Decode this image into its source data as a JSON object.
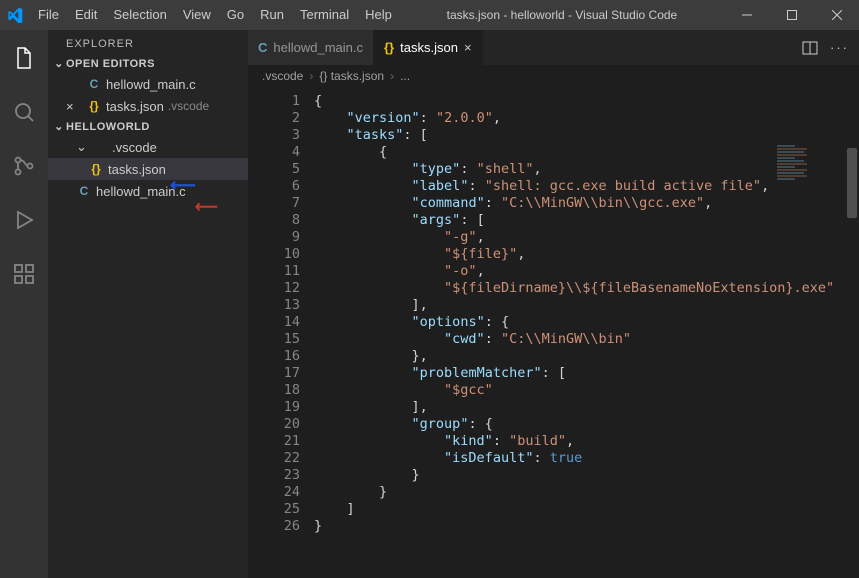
{
  "titlebar": {
    "title": "tasks.json - helloworld - Visual Studio Code",
    "menu": [
      "File",
      "Edit",
      "Selection",
      "View",
      "Go",
      "Run",
      "Terminal",
      "Help"
    ]
  },
  "sidebar": {
    "title": "EXPLORER",
    "open_editors_label": "OPEN EDITORS",
    "open_editors": [
      {
        "icon": "C",
        "iconClass": "icon-c",
        "name": "hellowd_main.c",
        "suffix": ""
      },
      {
        "icon": "{}",
        "iconClass": "icon-json",
        "name": "tasks.json",
        "suffix": ".vscode",
        "closeable": true
      }
    ],
    "project_label": "HELLOWORLD",
    "tree": [
      {
        "indent": 1,
        "chevron": true,
        "icon": "",
        "name": ".vscode"
      },
      {
        "indent": 2,
        "icon": "{}",
        "iconClass": "icon-json",
        "name": "tasks.json",
        "selected": true
      },
      {
        "indent": 1,
        "icon": "C",
        "iconClass": "icon-c",
        "name": "hellowd_main.c"
      }
    ]
  },
  "tabs": [
    {
      "icon": "C",
      "iconClass": "icon-c",
      "label": "hellowd_main.c",
      "active": false,
      "close": false
    },
    {
      "icon": "{}",
      "iconClass": "icon-json",
      "label": "tasks.json",
      "active": true,
      "close": true
    }
  ],
  "breadcrumb": [
    ".vscode",
    "{} tasks.json",
    "..."
  ],
  "code": {
    "lines": [
      [
        {
          "t": "{",
          "c": "p"
        }
      ],
      [
        {
          "t": "    ",
          "c": "p"
        },
        {
          "t": "\"version\"",
          "c": "k"
        },
        {
          "t": ": ",
          "c": "p"
        },
        {
          "t": "\"2.0.0\"",
          "c": "s"
        },
        {
          "t": ",",
          "c": "p"
        }
      ],
      [
        {
          "t": "    ",
          "c": "p"
        },
        {
          "t": "\"tasks\"",
          "c": "k"
        },
        {
          "t": ": [",
          "c": "p"
        }
      ],
      [
        {
          "t": "        {",
          "c": "p"
        }
      ],
      [
        {
          "t": "            ",
          "c": "p"
        },
        {
          "t": "\"type\"",
          "c": "k"
        },
        {
          "t": ": ",
          "c": "p"
        },
        {
          "t": "\"shell\"",
          "c": "s"
        },
        {
          "t": ",",
          "c": "p"
        }
      ],
      [
        {
          "t": "            ",
          "c": "p"
        },
        {
          "t": "\"label\"",
          "c": "k"
        },
        {
          "t": ": ",
          "c": "p"
        },
        {
          "t": "\"shell: gcc.exe build active file\"",
          "c": "s"
        },
        {
          "t": ",",
          "c": "p"
        }
      ],
      [
        {
          "t": "            ",
          "c": "p"
        },
        {
          "t": "\"command\"",
          "c": "k"
        },
        {
          "t": ": ",
          "c": "p"
        },
        {
          "t": "\"C:\\\\MinGW\\\\bin\\\\gcc.exe\"",
          "c": "s"
        },
        {
          "t": ",",
          "c": "p"
        }
      ],
      [
        {
          "t": "            ",
          "c": "p"
        },
        {
          "t": "\"args\"",
          "c": "k"
        },
        {
          "t": ": [",
          "c": "p"
        }
      ],
      [
        {
          "t": "                ",
          "c": "p"
        },
        {
          "t": "\"-g\"",
          "c": "s"
        },
        {
          "t": ",",
          "c": "p"
        }
      ],
      [
        {
          "t": "                ",
          "c": "p"
        },
        {
          "t": "\"${file}\"",
          "c": "s"
        },
        {
          "t": ",",
          "c": "p"
        }
      ],
      [
        {
          "t": "                ",
          "c": "p"
        },
        {
          "t": "\"-o\"",
          "c": "s"
        },
        {
          "t": ",",
          "c": "p"
        }
      ],
      [
        {
          "t": "                ",
          "c": "p"
        },
        {
          "t": "\"${fileDirname}\\\\${fileBasenameNoExtension}.exe\"",
          "c": "s"
        }
      ],
      [
        {
          "t": "            ],",
          "c": "p"
        }
      ],
      [
        {
          "t": "            ",
          "c": "p"
        },
        {
          "t": "\"options\"",
          "c": "k"
        },
        {
          "t": ": {",
          "c": "p"
        }
      ],
      [
        {
          "t": "                ",
          "c": "p"
        },
        {
          "t": "\"cwd\"",
          "c": "k"
        },
        {
          "t": ": ",
          "c": "p"
        },
        {
          "t": "\"C:\\\\MinGW\\\\bin\"",
          "c": "s"
        }
      ],
      [
        {
          "t": "            },",
          "c": "p"
        }
      ],
      [
        {
          "t": "            ",
          "c": "p"
        },
        {
          "t": "\"problemMatcher\"",
          "c": "k"
        },
        {
          "t": ": [",
          "c": "p"
        }
      ],
      [
        {
          "t": "                ",
          "c": "p"
        },
        {
          "t": "\"$gcc\"",
          "c": "s"
        }
      ],
      [
        {
          "t": "            ],",
          "c": "p"
        }
      ],
      [
        {
          "t": "            ",
          "c": "p"
        },
        {
          "t": "\"group\"",
          "c": "k"
        },
        {
          "t": ": {",
          "c": "p"
        }
      ],
      [
        {
          "t": "                ",
          "c": "p"
        },
        {
          "t": "\"kind\"",
          "c": "k"
        },
        {
          "t": ": ",
          "c": "p"
        },
        {
          "t": "\"build\"",
          "c": "s"
        },
        {
          "t": ",",
          "c": "p"
        }
      ],
      [
        {
          "t": "                ",
          "c": "p"
        },
        {
          "t": "\"isDefault\"",
          "c": "k"
        },
        {
          "t": ": ",
          "c": "p"
        },
        {
          "t": "true",
          "c": "b"
        }
      ],
      [
        {
          "t": "            }",
          "c": "p"
        }
      ],
      [
        {
          "t": "        }",
          "c": "p"
        }
      ],
      [
        {
          "t": "    ]",
          "c": "p"
        }
      ],
      [
        {
          "t": "}",
          "c": "p"
        }
      ]
    ]
  }
}
